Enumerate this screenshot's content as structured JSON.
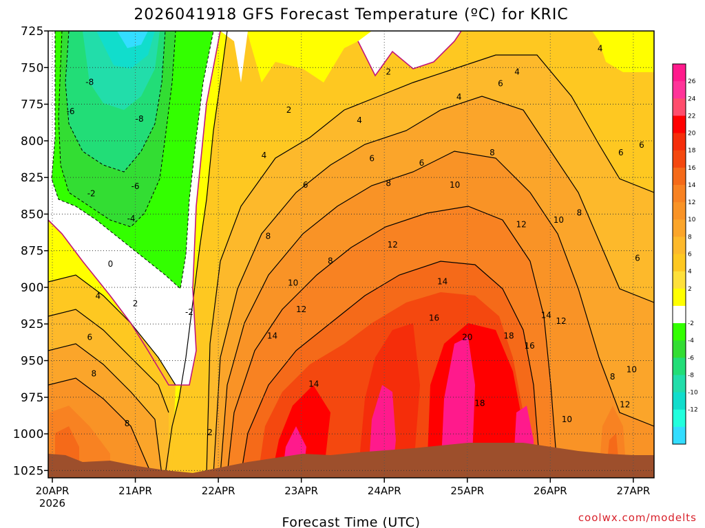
{
  "chart_data": {
    "type": "heatmap",
    "title": "2026041918 GFS Forecast Temperature (ºC) for KRIC",
    "xlabel": "Forecast Time (UTC)",
    "ylabel": "",
    "credit": "coolwx.com/modelts",
    "x_ticks": [
      {
        "label": "20APR",
        "sub": "2026",
        "day": 0
      },
      {
        "label": "21APR",
        "sub": "",
        "day": 1
      },
      {
        "label": "22APR",
        "sub": "",
        "day": 2
      },
      {
        "label": "23APR",
        "sub": "",
        "day": 3
      },
      {
        "label": "24APR",
        "sub": "",
        "day": 4
      },
      {
        "label": "25APR",
        "sub": "",
        "day": 5
      },
      {
        "label": "26APR",
        "sub": "",
        "day": 6
      },
      {
        "label": "27APR",
        "sub": "",
        "day": 7
      }
    ],
    "xlim_days": [
      -0.05,
      7.25
    ],
    "y_ticks": [
      725,
      750,
      775,
      800,
      825,
      850,
      875,
      900,
      925,
      950,
      975,
      1000,
      1025
    ],
    "ylim_hpa": [
      725,
      1030
    ],
    "colorbar": {
      "ticks": [
        "26",
        "24",
        "22",
        "20",
        "18",
        "16",
        "14",
        "12",
        "10",
        "8",
        "6",
        "4",
        "2",
        "-2",
        "-4",
        "-6",
        "-8",
        "-10",
        "-12"
      ],
      "colors": [
        "#ff1a8c",
        "#ff3399",
        "#ff4d6d",
        "#ff0000",
        "#f52d0a",
        "#f4480f",
        "#f56a19",
        "#f88222",
        "#f99326",
        "#fba52a",
        "#fdb92b",
        "#fec821",
        "#fee03a",
        "#ffff00",
        "#ffffff",
        "#33ff00",
        "#33dd33",
        "#22dd77",
        "#22ddaa",
        "#11ddcc",
        "#22ffdd",
        "#33ddff"
      ]
    },
    "contour_labels": [
      {
        "text": "-8",
        "day": 0.45,
        "hpa": 760
      },
      {
        "text": "-6",
        "day": 0.22,
        "hpa": 780
      },
      {
        "text": "-8",
        "day": 1.05,
        "hpa": 785
      },
      {
        "text": "-6",
        "day": 1.0,
        "hpa": 831
      },
      {
        "text": "-4",
        "day": 0.95,
        "hpa": 853
      },
      {
        "text": "-2",
        "day": 0.47,
        "hpa": 836
      },
      {
        "text": "-2",
        "day": 1.65,
        "hpa": 917
      },
      {
        "text": "0",
        "day": 0.7,
        "hpa": 884
      },
      {
        "text": "2",
        "day": 1.0,
        "hpa": 911
      },
      {
        "text": "4",
        "day": 0.55,
        "hpa": 906
      },
      {
        "text": "6",
        "day": 0.45,
        "hpa": 934
      },
      {
        "text": "8",
        "day": 0.5,
        "hpa": 959
      },
      {
        "text": "8",
        "day": 0.9,
        "hpa": 993
      },
      {
        "text": "2",
        "day": 1.9,
        "hpa": 999
      },
      {
        "text": "2",
        "day": 2.85,
        "hpa": 779
      },
      {
        "text": "4",
        "day": 2.55,
        "hpa": 810
      },
      {
        "text": "6",
        "day": 3.05,
        "hpa": 830
      },
      {
        "text": "8",
        "day": 2.6,
        "hpa": 865
      },
      {
        "text": "8",
        "day": 3.35,
        "hpa": 882
      },
      {
        "text": "10",
        "day": 2.9,
        "hpa": 897
      },
      {
        "text": "12",
        "day": 3.0,
        "hpa": 915
      },
      {
        "text": "14",
        "day": 2.65,
        "hpa": 933
      },
      {
        "text": "14",
        "day": 3.15,
        "hpa": 966
      },
      {
        "text": "2",
        "day": 4.05,
        "hpa": 753
      },
      {
        "text": "4",
        "day": 3.7,
        "hpa": 786
      },
      {
        "text": "6",
        "day": 3.85,
        "hpa": 812
      },
      {
        "text": "6",
        "day": 4.45,
        "hpa": 815
      },
      {
        "text": "8",
        "day": 4.05,
        "hpa": 829
      },
      {
        "text": "4",
        "day": 4.9,
        "hpa": 770
      },
      {
        "text": "6",
        "day": 5.4,
        "hpa": 761
      },
      {
        "text": "4",
        "day": 5.6,
        "hpa": 753
      },
      {
        "text": "4",
        "day": 6.6,
        "hpa": 737
      },
      {
        "text": "8",
        "day": 5.3,
        "hpa": 808
      },
      {
        "text": "10",
        "day": 4.85,
        "hpa": 830
      },
      {
        "text": "12",
        "day": 4.1,
        "hpa": 871
      },
      {
        "text": "12",
        "day": 5.65,
        "hpa": 857
      },
      {
        "text": "10",
        "day": 6.1,
        "hpa": 854
      },
      {
        "text": "8",
        "day": 6.35,
        "hpa": 849
      },
      {
        "text": "14",
        "day": 4.7,
        "hpa": 896
      },
      {
        "text": "16",
        "day": 4.6,
        "hpa": 921
      },
      {
        "text": "20",
        "day": 5.0,
        "hpa": 934
      },
      {
        "text": "18",
        "day": 5.5,
        "hpa": 933
      },
      {
        "text": "16",
        "day": 5.75,
        "hpa": 940
      },
      {
        "text": "14",
        "day": 5.95,
        "hpa": 919
      },
      {
        "text": "12",
        "day": 6.13,
        "hpa": 923
      },
      {
        "text": "18",
        "day": 5.15,
        "hpa": 979
      },
      {
        "text": "10",
        "day": 6.2,
        "hpa": 990
      },
      {
        "text": "6",
        "day": 6.85,
        "hpa": 808
      },
      {
        "text": "6",
        "day": 7.1,
        "hpa": 803
      },
      {
        "text": "6",
        "day": 7.05,
        "hpa": 880
      },
      {
        "text": "8",
        "day": 6.75,
        "hpa": 961
      },
      {
        "text": "10",
        "day": 6.98,
        "hpa": 956
      },
      {
        "text": "12",
        "day": 6.9,
        "hpa": 980
      }
    ]
  }
}
